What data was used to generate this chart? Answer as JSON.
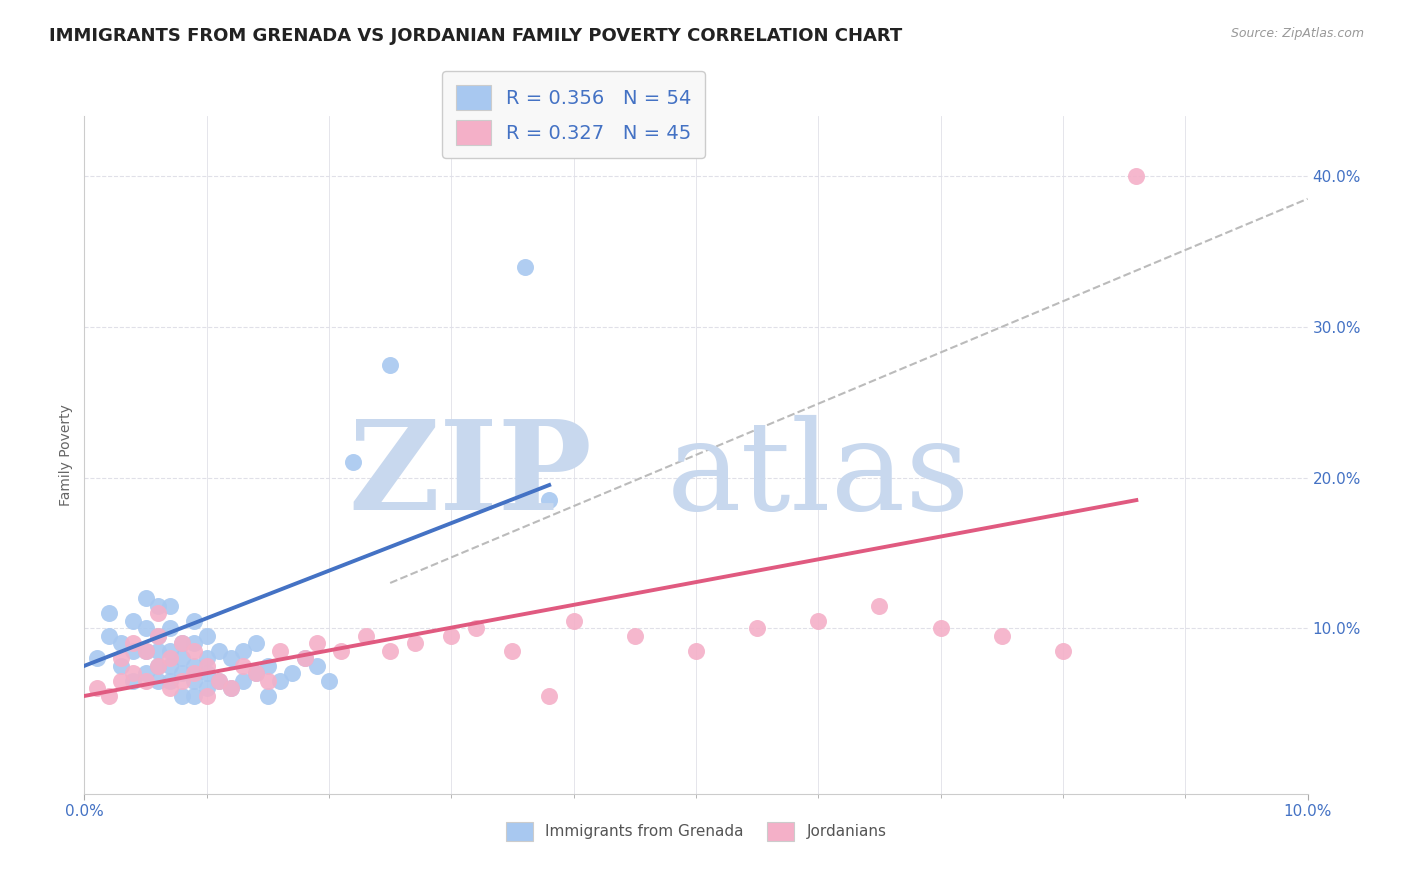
{
  "title": "IMMIGRANTS FROM GRENADA VS JORDANIAN FAMILY POVERTY CORRELATION CHART",
  "source": "Source: ZipAtlas.com",
  "ylabel": "Family Poverty",
  "yticks": [
    0.0,
    0.1,
    0.2,
    0.3,
    0.4
  ],
  "ytick_labels": [
    "",
    "10.0%",
    "20.0%",
    "30.0%",
    "40.0%"
  ],
  "xlim": [
    0.0,
    0.1
  ],
  "ylim": [
    -0.01,
    0.44
  ],
  "grenada_R": 0.356,
  "grenada_N": 54,
  "jordanian_R": 0.327,
  "jordanian_N": 45,
  "grenada_color": "#a8c8f0",
  "jordanian_color": "#f4b0c8",
  "grenada_line_color": "#4472c4",
  "jordanian_line_color": "#e05a80",
  "dashed_line_color": "#bbbbbb",
  "background_color": "#ffffff",
  "grid_color": "#e0e0e8",
  "watermark_zip_color": "#c8d8ee",
  "watermark_atlas_color": "#c8d8ee",
  "title_fontsize": 13,
  "axis_label_fontsize": 10,
  "tick_fontsize": 11,
  "legend_fontsize": 14,
  "grenada_scatter_x": [
    0.001,
    0.002,
    0.002,
    0.003,
    0.003,
    0.004,
    0.004,
    0.004,
    0.005,
    0.005,
    0.005,
    0.005,
    0.006,
    0.006,
    0.006,
    0.006,
    0.006,
    0.007,
    0.007,
    0.007,
    0.007,
    0.007,
    0.008,
    0.008,
    0.008,
    0.008,
    0.009,
    0.009,
    0.009,
    0.009,
    0.009,
    0.01,
    0.01,
    0.01,
    0.01,
    0.011,
    0.011,
    0.012,
    0.012,
    0.013,
    0.013,
    0.014,
    0.014,
    0.015,
    0.015,
    0.016,
    0.017,
    0.018,
    0.019,
    0.02,
    0.022,
    0.025,
    0.036,
    0.038
  ],
  "grenada_scatter_y": [
    0.08,
    0.095,
    0.11,
    0.075,
    0.09,
    0.065,
    0.085,
    0.105,
    0.07,
    0.085,
    0.1,
    0.12,
    0.065,
    0.075,
    0.085,
    0.095,
    0.115,
    0.065,
    0.075,
    0.085,
    0.1,
    0.115,
    0.055,
    0.07,
    0.08,
    0.09,
    0.055,
    0.065,
    0.075,
    0.09,
    0.105,
    0.06,
    0.07,
    0.08,
    0.095,
    0.065,
    0.085,
    0.06,
    0.08,
    0.065,
    0.085,
    0.07,
    0.09,
    0.055,
    0.075,
    0.065,
    0.07,
    0.08,
    0.075,
    0.065,
    0.21,
    0.275,
    0.34,
    0.185
  ],
  "jordanian_scatter_x": [
    0.001,
    0.002,
    0.003,
    0.003,
    0.004,
    0.004,
    0.005,
    0.005,
    0.006,
    0.006,
    0.006,
    0.007,
    0.007,
    0.008,
    0.008,
    0.009,
    0.009,
    0.01,
    0.01,
    0.011,
    0.012,
    0.013,
    0.014,
    0.015,
    0.016,
    0.018,
    0.019,
    0.021,
    0.023,
    0.025,
    0.027,
    0.03,
    0.032,
    0.035,
    0.038,
    0.04,
    0.045,
    0.05,
    0.055,
    0.06,
    0.065,
    0.07,
    0.075,
    0.08,
    0.086
  ],
  "jordanian_scatter_y": [
    0.06,
    0.055,
    0.065,
    0.08,
    0.07,
    0.09,
    0.065,
    0.085,
    0.075,
    0.095,
    0.11,
    0.06,
    0.08,
    0.065,
    0.09,
    0.07,
    0.085,
    0.055,
    0.075,
    0.065,
    0.06,
    0.075,
    0.07,
    0.065,
    0.085,
    0.08,
    0.09,
    0.085,
    0.095,
    0.085,
    0.09,
    0.095,
    0.1,
    0.085,
    0.055,
    0.105,
    0.095,
    0.085,
    0.1,
    0.105,
    0.115,
    0.1,
    0.095,
    0.085,
    0.4
  ],
  "grenada_line_x": [
    0.0,
    0.038
  ],
  "grenada_line_y": [
    0.075,
    0.195
  ],
  "jordanian_line_x": [
    0.0,
    0.086
  ],
  "jordanian_line_y": [
    0.055,
    0.185
  ],
  "dashed_line_x": [
    0.025,
    0.1
  ],
  "dashed_line_y": [
    0.13,
    0.385
  ],
  "xtick_minor": [
    0.01,
    0.02,
    0.03,
    0.04,
    0.05,
    0.06,
    0.07,
    0.08,
    0.09
  ]
}
